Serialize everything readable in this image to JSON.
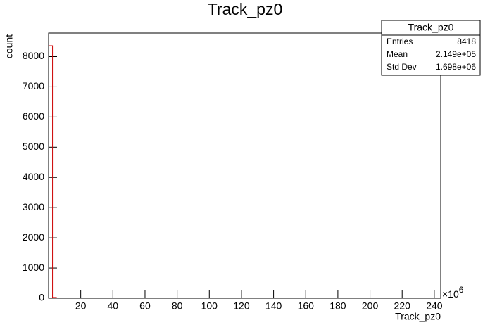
{
  "chart_data": {
    "type": "histogram",
    "title": "Track_pz0",
    "x_label": "Track_pz0",
    "y_label": "count",
    "x_multiplier": {
      "base": "×10",
      "exponent": "6"
    },
    "color": "#cc0000",
    "bins": [
      0,
      2.44,
      4.88,
      7.32,
      9.76,
      12.2,
      14.64,
      17.08,
      19.52,
      21.96,
      24.4,
      26.84,
      29.28,
      31.72,
      34.16,
      36.6,
      39.04,
      41.48,
      43.92,
      46.36,
      48.8,
      51.24,
      53.68,
      56.12,
      58.56,
      61,
      63.44,
      65.88,
      68.32,
      70.76,
      73.2,
      75.64,
      78.08,
      80.52,
      82.96,
      85.4,
      87.84,
      90.28,
      92.72,
      95.16,
      97.6,
      100.04,
      102.48,
      104.92,
      107.36,
      109.8,
      112.24,
      114.68,
      117.12,
      119.56,
      122,
      124.44,
      126.88,
      129.32,
      131.76,
      134.2,
      136.64,
      139.08,
      141.52,
      143.96,
      146.4,
      148.84,
      151.28,
      153.72,
      156.16,
      158.6,
      161.04,
      163.48,
      165.92,
      168.36,
      170.8,
      173.24,
      175.68,
      178.12,
      180.56,
      183,
      185.44,
      187.88,
      190.32,
      192.76,
      195.2,
      197.64,
      200.08,
      202.52,
      204.96,
      207.4,
      209.84,
      212.28,
      214.72,
      217.16,
      219.6,
      222.04,
      224.48,
      226.92,
      229.36,
      231.8,
      234.24,
      236.68,
      239.12,
      241.56,
      244
    ],
    "values": [
      8360,
      25,
      10,
      6,
      4,
      3,
      2,
      2,
      1,
      1,
      1,
      1,
      0,
      0,
      0,
      0,
      0,
      0,
      0,
      0,
      0,
      0,
      0,
      0,
      0,
      0,
      0,
      0,
      0,
      0,
      0,
      0,
      0,
      0,
      0,
      0,
      0,
      0,
      0,
      0,
      0,
      0,
      0,
      0,
      0,
      0,
      0,
      0,
      0,
      0,
      0,
      0,
      0,
      0,
      0,
      0,
      0,
      0,
      0,
      0,
      0,
      0,
      0,
      0,
      0,
      0,
      0,
      0,
      0,
      0,
      0,
      0,
      0,
      0,
      0,
      0,
      0,
      0,
      0,
      0,
      0,
      0,
      0,
      0,
      0,
      0,
      0,
      0,
      0,
      0,
      0,
      0,
      0,
      0,
      0,
      0,
      0,
      0,
      0,
      0
    ],
    "xlim": [
      0,
      244
    ],
    "ylim": [
      0,
      8780
    ],
    "xticks": [
      20,
      40,
      60,
      80,
      100,
      120,
      140,
      160,
      180,
      200,
      220,
      240
    ],
    "yticks": [
      0,
      1000,
      2000,
      3000,
      4000,
      5000,
      6000,
      7000,
      8000
    ],
    "stats": {
      "title": "Track_pz0",
      "rows": [
        [
          "Entries",
          "8418"
        ],
        [
          "Mean",
          "2.149e+05"
        ],
        [
          "Std Dev",
          "1.698e+06"
        ]
      ]
    }
  }
}
